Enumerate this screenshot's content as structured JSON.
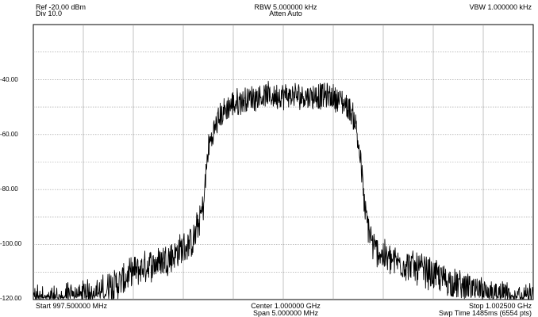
{
  "header": {
    "ref": "Ref -20.00 dBm",
    "div": "Div 10.0",
    "rbw": "RBW 5.000000 kHz",
    "atten": "Atten Auto",
    "vbw": "VBW 1.000000 kHz"
  },
  "footer": {
    "start": "Start 997.500000 MHz",
    "center": "Center 1.000000 GHz",
    "span": "Span 5.000000 MHz",
    "stop": "Stop 1.002500 GHz",
    "sweep": "Swp Time 1485ms (6554 pts)"
  },
  "colors": {
    "trace": "#000000",
    "grid": "#9a9a9a",
    "frame": "#000000"
  },
  "chart_data": {
    "type": "line",
    "title": "",
    "xlabel": "",
    "ylabel": "",
    "xlim": [
      997.5,
      1002.5
    ],
    "ylim": [
      -120,
      -20
    ],
    "grid": true,
    "y_tick_labels": [
      {
        "value": -40,
        "label": "-40.00"
      },
      {
        "value": -60,
        "label": "-60.00"
      },
      {
        "value": -80,
        "label": "-80.00"
      },
      {
        "value": -100,
        "label": "-100.00"
      },
      {
        "value": -120,
        "label": "-120.00"
      }
    ],
    "x_divisions": 10,
    "series": [
      {
        "x": [
          997.5,
          997.8,
          998.0,
          998.2,
          998.4,
          998.5,
          998.7,
          998.9,
          999.0,
          999.1,
          999.2,
          999.25,
          999.35,
          999.45,
          999.55,
          999.65,
          999.75,
          999.85,
          999.95,
          1000.05,
          1000.15,
          1000.25,
          1000.35,
          1000.45,
          1000.55,
          1000.65,
          1000.72,
          1000.77,
          1000.82,
          1000.9,
          1001.0,
          1001.1,
          1001.3,
          1001.5,
          1001.7,
          1001.9,
          1002.1,
          1002.3,
          1002.5
        ],
        "y": [
          -120,
          -120,
          -119,
          -117,
          -113,
          -110,
          -107,
          -104,
          -101,
          -99,
          -86,
          -65,
          -54,
          -50,
          -48,
          -47,
          -46,
          -46,
          -46,
          -46,
          -46,
          -46,
          -46,
          -46,
          -47,
          -50,
          -55,
          -68,
          -89,
          -101,
          -104,
          -106,
          -108,
          -111,
          -114,
          -117,
          -119,
          -120,
          -120
        ]
      }
    ]
  }
}
